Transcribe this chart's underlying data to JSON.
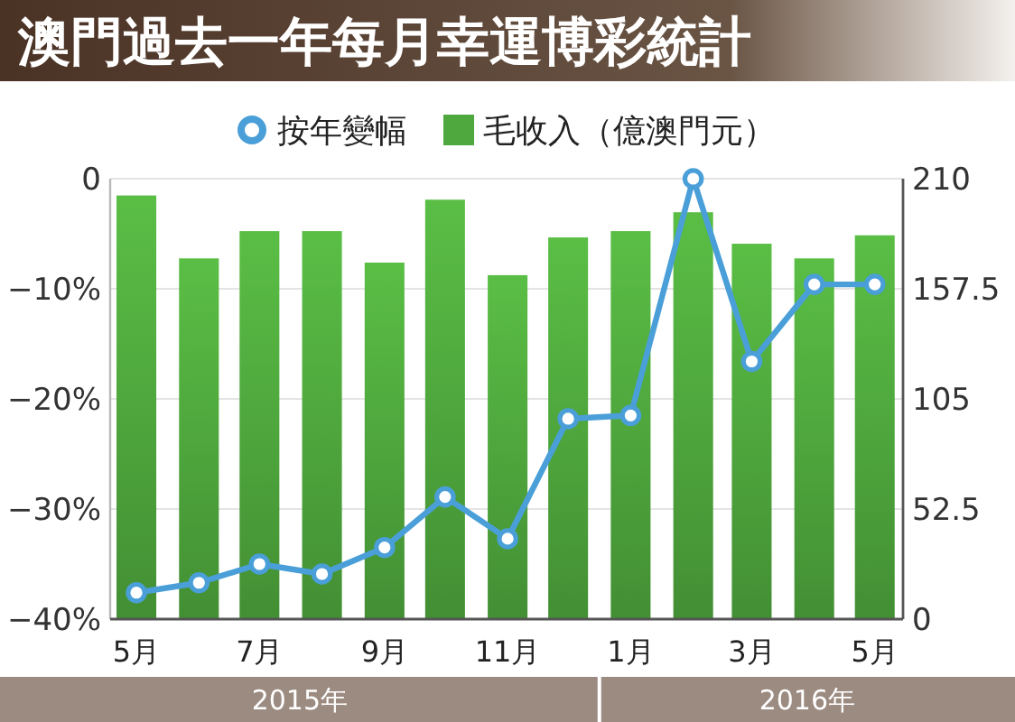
{
  "chart_data": {
    "type": "bar",
    "title": "澳門過去一年每月幸運博彩統計",
    "x": [
      "2015-05",
      "2015-06",
      "2015-07",
      "2015-08",
      "2015-09",
      "2015-10",
      "2015-11",
      "2015-12",
      "2016-01",
      "2016-02",
      "2016-03",
      "2016-04",
      "2016-05"
    ],
    "xlim": [
      "2015-04-18",
      "2016-05-15"
    ],
    "xticks": [
      {
        "value": "2015-05",
        "label": "5月"
      },
      {
        "value": "2015-07",
        "label": "7月"
      },
      {
        "value": "2015-09",
        "label": "9月"
      },
      {
        "value": "2015-11",
        "label": "11月"
      },
      {
        "value": "2016-01",
        "label": "1月"
      },
      {
        "value": "2016-03",
        "label": "3月"
      },
      {
        "value": "2016-05",
        "label": "5月"
      }
    ],
    "series": [
      {
        "name": "按年變幅",
        "type": "line",
        "color": "#4a9fd8",
        "values": [
          -37.6,
          -36.7,
          -35.0,
          -35.9,
          -33.5,
          -28.9,
          -32.7,
          -21.8,
          -21.5,
          0,
          -16.6,
          -9.6,
          -9.6
        ]
      },
      {
        "name": "毛收入（億澳門元）",
        "axis": "y2",
        "color": "#4fa83d",
        "values": [
          202,
          172,
          185,
          185,
          170,
          200,
          164,
          182,
          185,
          194,
          179,
          172,
          183
        ]
      }
    ],
    "ylim": [
      -40,
      0
    ],
    "yticks": [
      0,
      {
        "value": -10,
        "label": "−10%"
      },
      {
        "value": -20,
        "label": "−20%"
      },
      {
        "value": -30,
        "label": "−30%"
      },
      {
        "value": -40,
        "label": "−40%"
      }
    ],
    "y2lim": [
      0,
      210
    ],
    "y2ticks": [
      0,
      52.5,
      105,
      157.5,
      210
    ],
    "annotations": [
      "2015年",
      "2016年"
    ],
    "grid": "y",
    "legend": "top",
    "marker": "circle",
    "line_style": "solid"
  }
}
